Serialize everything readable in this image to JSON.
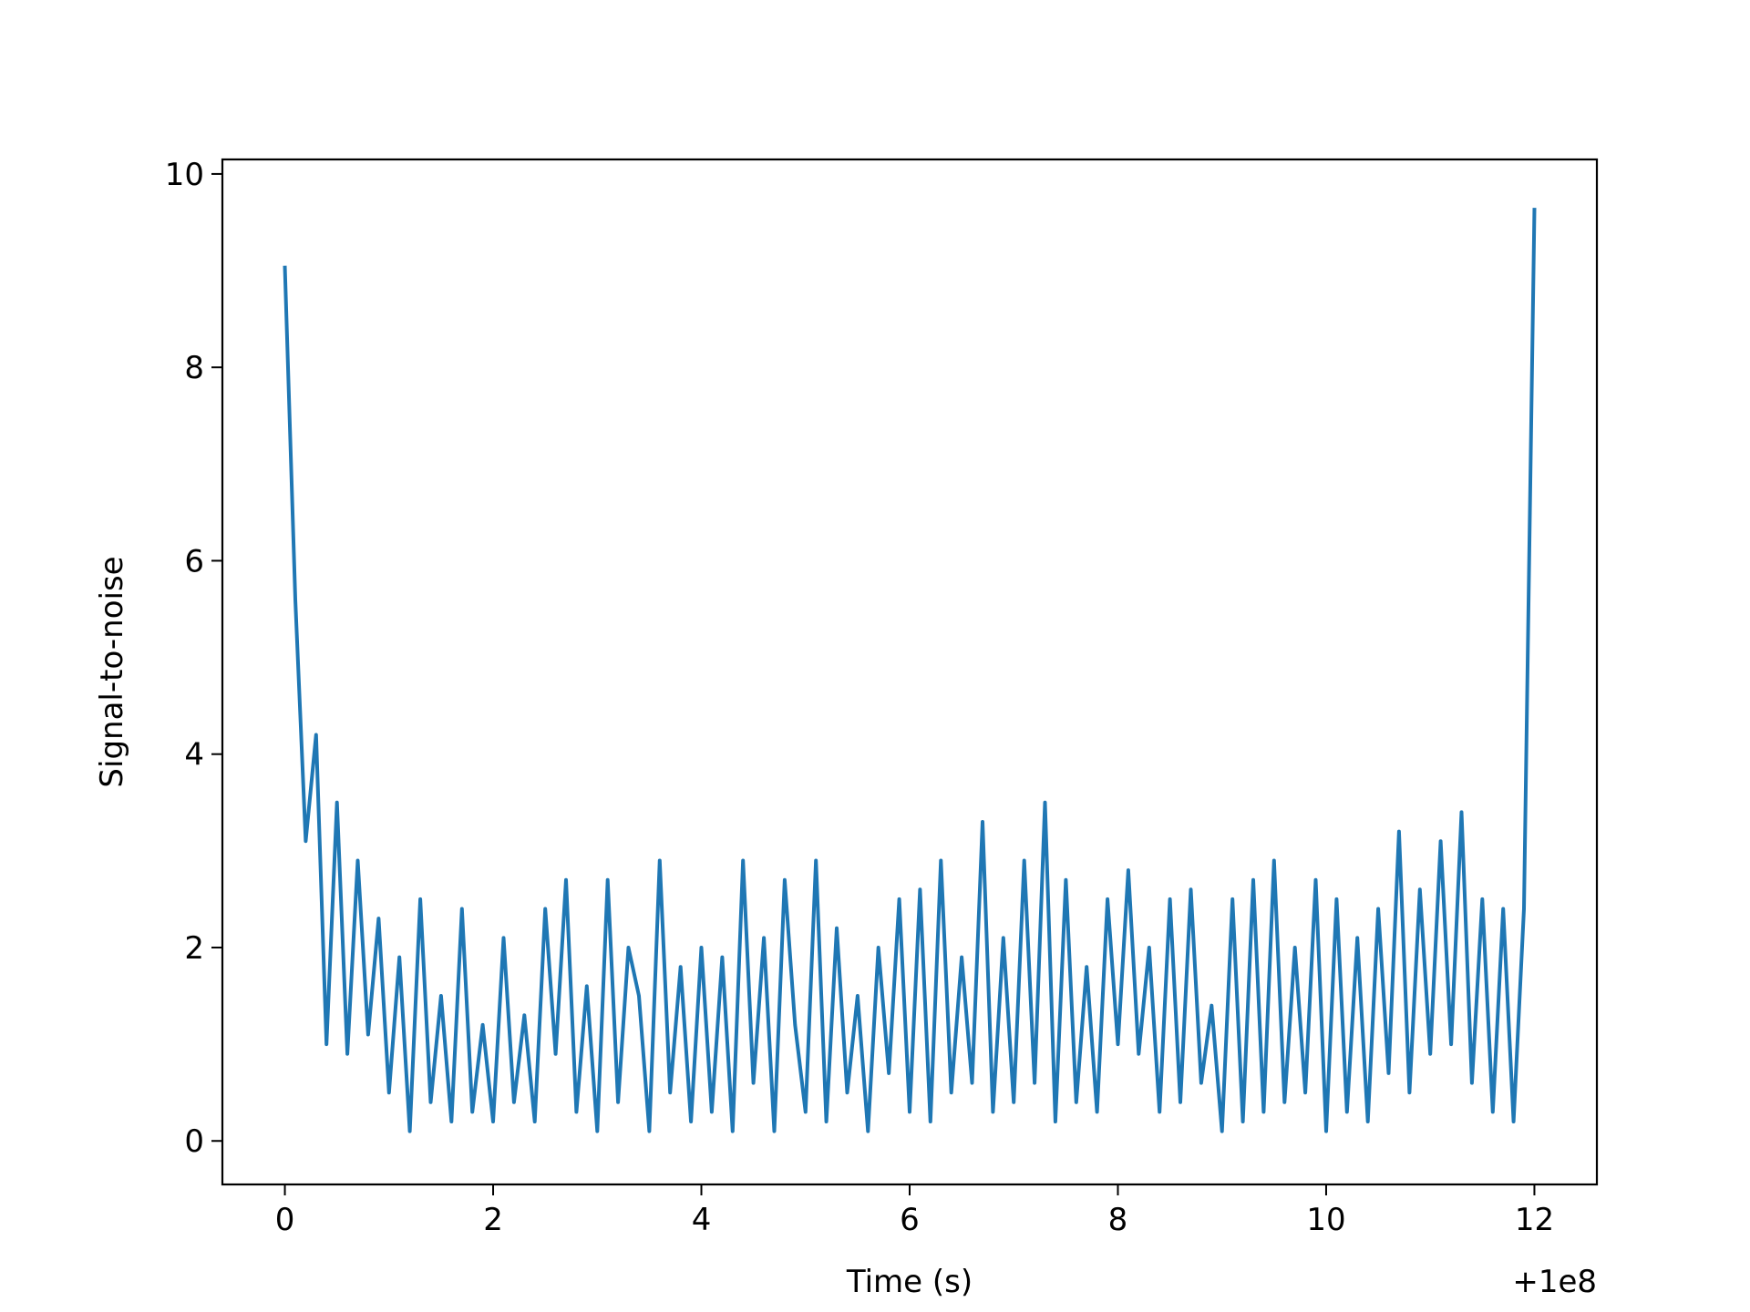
{
  "chart_data": {
    "type": "line",
    "title": "",
    "xlabel": "Time (s)",
    "ylabel": "Signal-to-noise",
    "x_offset_text": "+1e8",
    "xlim": [
      -0.6,
      12.6
    ],
    "ylim": [
      -0.45,
      10.15
    ],
    "x_ticks": [
      0,
      2,
      4,
      6,
      8,
      10,
      12
    ],
    "x_tick_labels": [
      "0",
      "2",
      "4",
      "6",
      "8",
      "10",
      "12"
    ],
    "y_ticks": [
      0,
      2,
      4,
      6,
      8,
      10
    ],
    "y_tick_labels": [
      "0",
      "2",
      "4",
      "6",
      "8",
      "10"
    ],
    "grid": false,
    "series": [
      {
        "color": "#1f77b4",
        "x": [
          0.0,
          0.1,
          0.2,
          0.3,
          0.4,
          0.5,
          0.6,
          0.7,
          0.8,
          0.9,
          1.0,
          1.1,
          1.2,
          1.3,
          1.4,
          1.5,
          1.6,
          1.7,
          1.8,
          1.9,
          2.0,
          2.1,
          2.2,
          2.3,
          2.4,
          2.5,
          2.6,
          2.7,
          2.8,
          2.9,
          3.0,
          3.1,
          3.2,
          3.3,
          3.4,
          3.5,
          3.6,
          3.7,
          3.8,
          3.9,
          4.0,
          4.1,
          4.2,
          4.3,
          4.4,
          4.5,
          4.6,
          4.7,
          4.8,
          4.9,
          5.0,
          5.1,
          5.2,
          5.3,
          5.4,
          5.5,
          5.6,
          5.7,
          5.8,
          5.9,
          6.0,
          6.1,
          6.2,
          6.3,
          6.4,
          6.5,
          6.6,
          6.7,
          6.8,
          6.9,
          7.0,
          7.1,
          7.2,
          7.3,
          7.4,
          7.5,
          7.6,
          7.7,
          7.8,
          7.9,
          8.0,
          8.1,
          8.2,
          8.3,
          8.4,
          8.5,
          8.6,
          8.7,
          8.8,
          8.9,
          9.0,
          9.1,
          9.2,
          9.3,
          9.4,
          9.5,
          9.6,
          9.7,
          9.8,
          9.9,
          10.0,
          10.1,
          10.2,
          10.3,
          10.4,
          10.5,
          10.6,
          10.7,
          10.8,
          10.9,
          11.0,
          11.1,
          11.2,
          11.3,
          11.4,
          11.5,
          11.6,
          11.7,
          11.8,
          11.9,
          12.0
        ],
        "y": [
          9.05,
          5.6,
          3.1,
          4.2,
          1.0,
          3.5,
          0.9,
          2.9,
          1.1,
          2.3,
          0.5,
          1.9,
          0.1,
          2.5,
          0.4,
          1.5,
          0.2,
          2.4,
          0.3,
          1.2,
          0.2,
          2.1,
          0.4,
          1.3,
          0.2,
          2.4,
          0.9,
          2.7,
          0.3,
          1.6,
          0.1,
          2.7,
          0.4,
          2.0,
          1.5,
          0.1,
          2.9,
          0.5,
          1.8,
          0.2,
          2.0,
          0.3,
          1.9,
          0.1,
          2.9,
          0.6,
          2.1,
          0.1,
          2.7,
          1.2,
          0.3,
          2.9,
          0.2,
          2.2,
          0.5,
          1.5,
          0.1,
          2.0,
          0.7,
          2.5,
          0.3,
          2.6,
          0.2,
          2.9,
          0.5,
          1.9,
          0.6,
          3.3,
          0.3,
          2.1,
          0.4,
          2.9,
          0.6,
          3.5,
          0.2,
          2.7,
          0.4,
          1.8,
          0.3,
          2.5,
          1.0,
          2.8,
          0.9,
          2.0,
          0.3,
          2.5,
          0.4,
          2.6,
          0.6,
          1.4,
          0.1,
          2.5,
          0.2,
          2.7,
          0.3,
          2.9,
          0.4,
          2.0,
          0.5,
          2.7,
          0.1,
          2.5,
          0.3,
          2.1,
          0.2,
          2.4,
          0.7,
          3.2,
          0.5,
          2.6,
          0.9,
          3.1,
          1.0,
          3.4,
          0.6,
          2.5,
          0.3,
          2.4,
          0.2,
          2.4,
          9.65
        ]
      }
    ]
  }
}
